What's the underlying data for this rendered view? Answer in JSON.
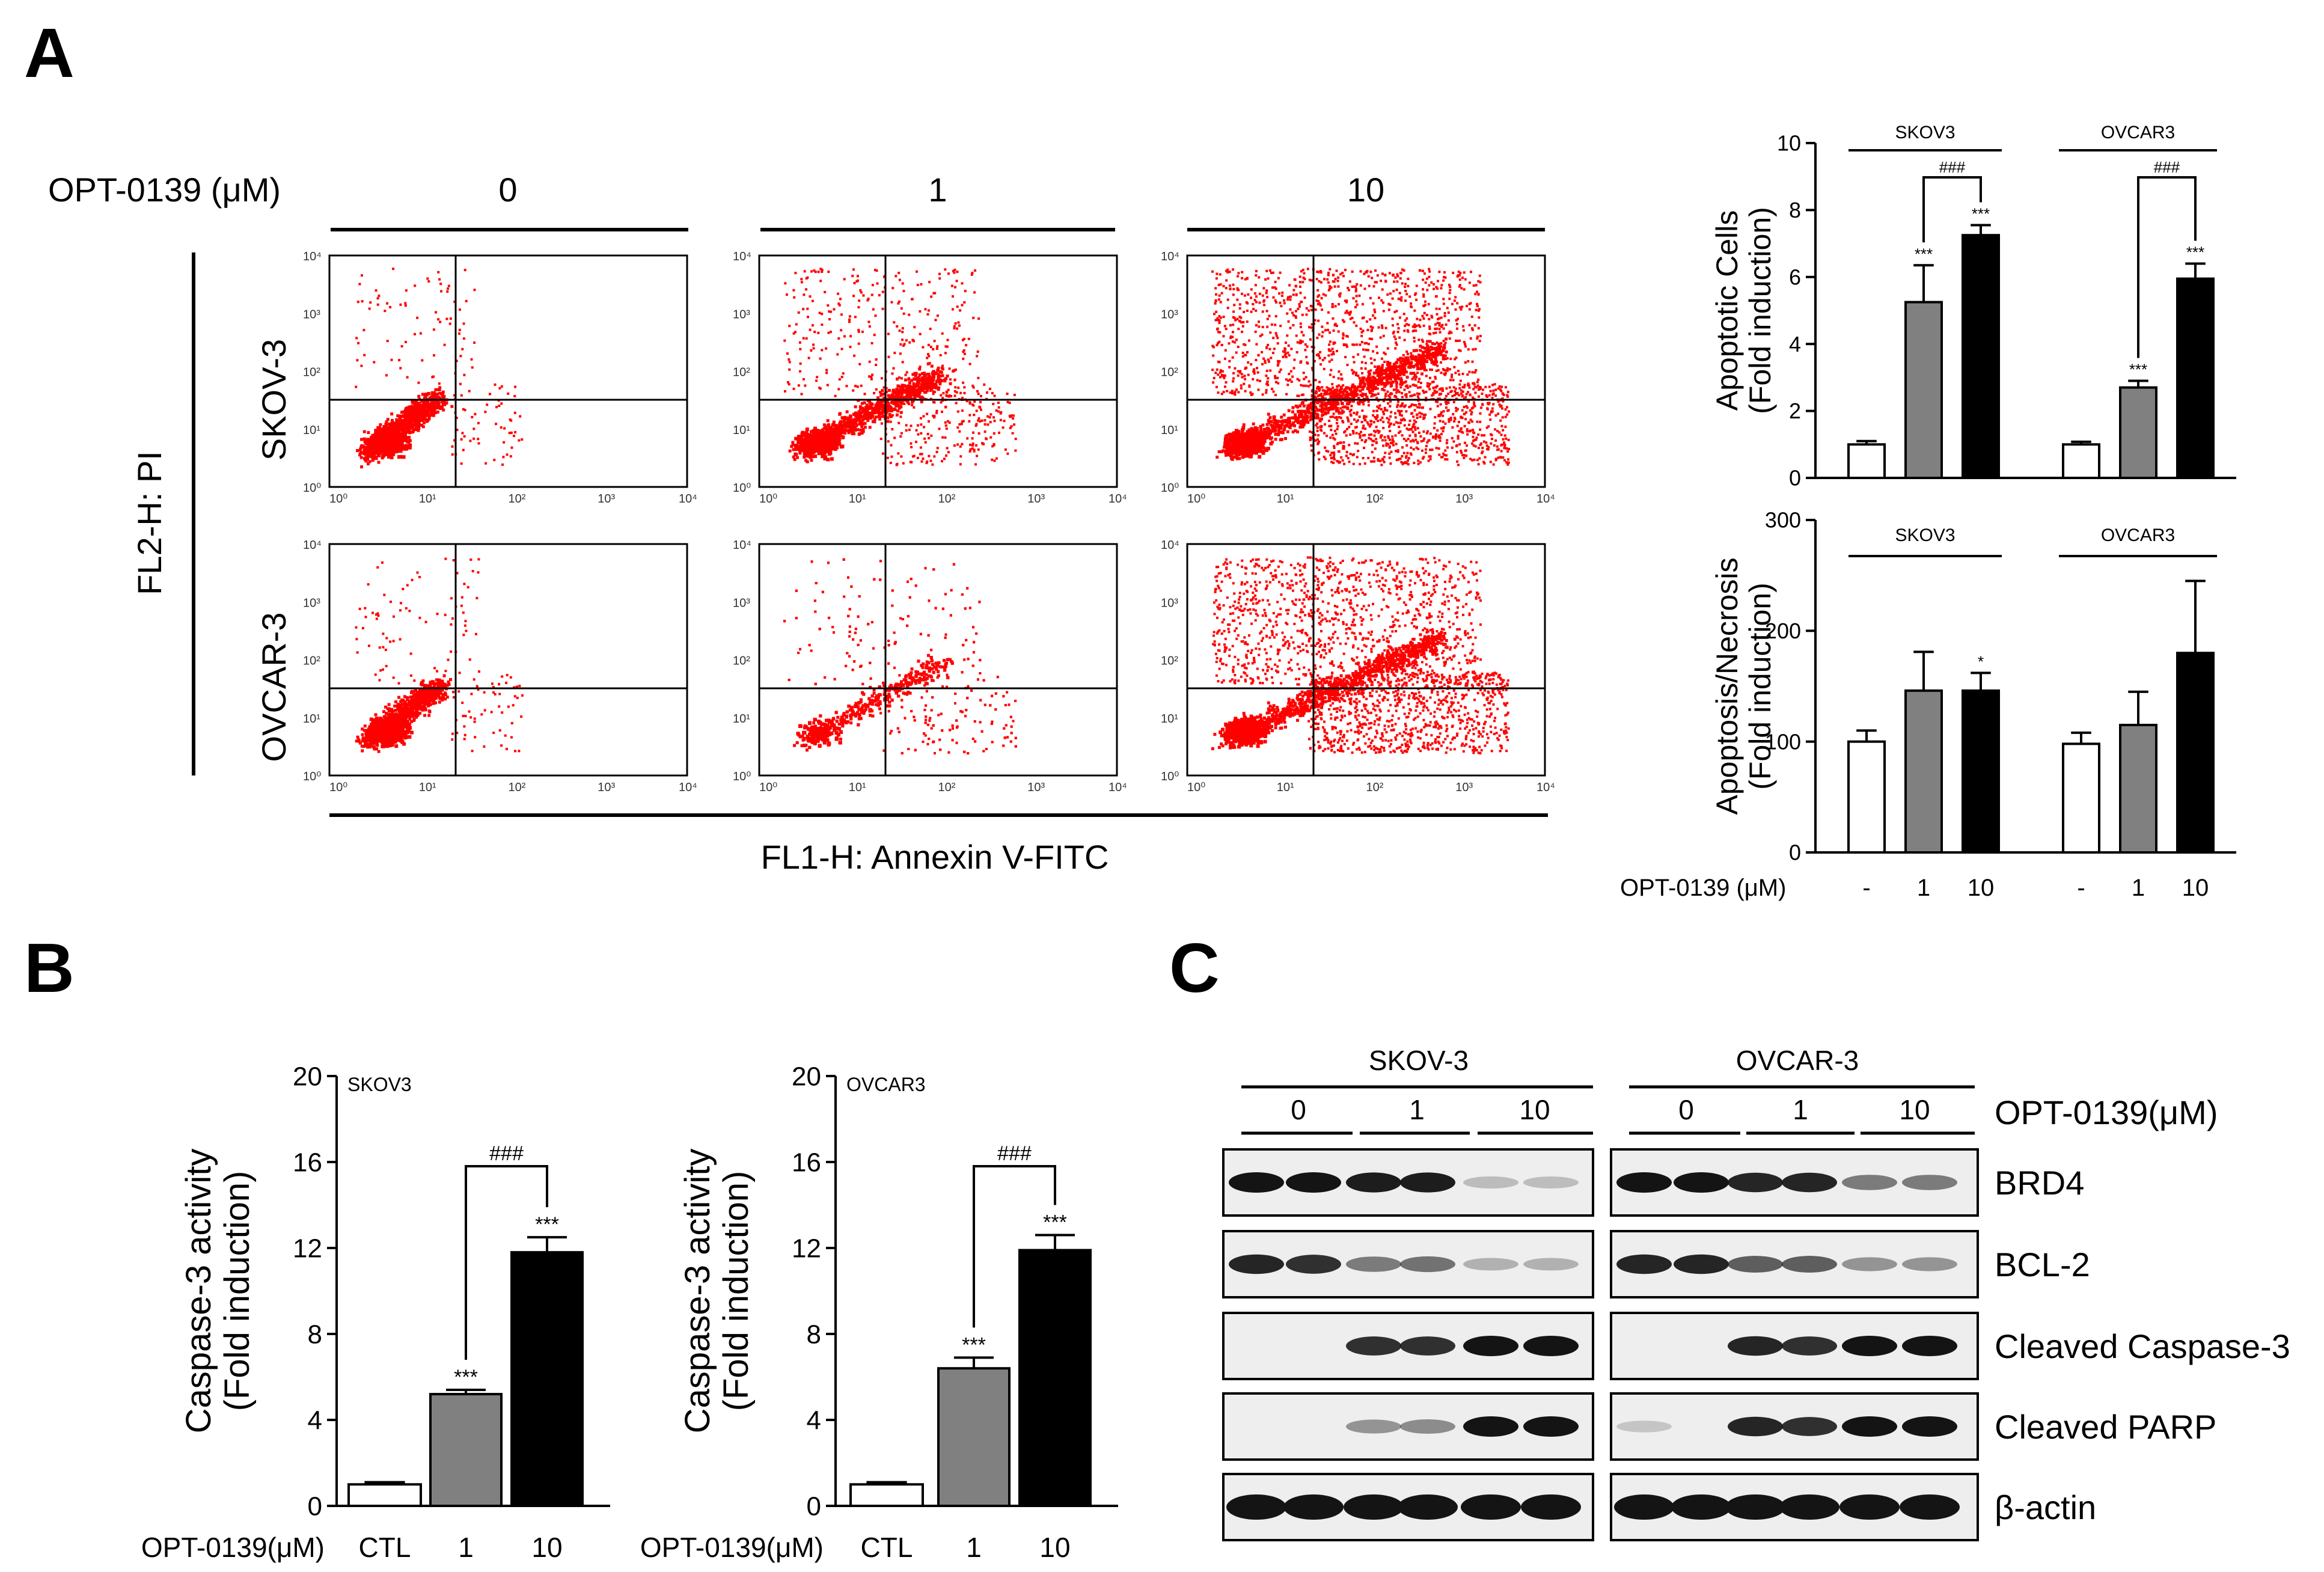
{
  "panels": {
    "a": "A",
    "b": "B",
    "c": "C"
  },
  "flow": {
    "treatment_label": "OPT-0139 (μM)",
    "doses": [
      "0",
      "1",
      "10"
    ],
    "cell_lines": [
      "SKOV-3",
      "OVCAR-3"
    ],
    "y_axis_label": "FL2-H: PI",
    "x_axis_label": "FL1-H: Annexin V-FITC",
    "tick_labels": [
      "10⁰",
      "10¹",
      "10²",
      "10³",
      "10⁴"
    ],
    "dot_color": "#ff0000"
  },
  "treatment_row": {
    "label": "OPT-0139 (μM)",
    "values": [
      "-",
      "1",
      "10",
      "-",
      "1",
      "10"
    ]
  },
  "westernblot": {
    "groups": [
      "SKOV-3",
      "OVCAR-3"
    ],
    "doses": [
      "0",
      "1",
      "10"
    ],
    "treatment_label": "OPT-0139(μM)",
    "proteins": [
      "BRD4",
      "BCL-2",
      "Cleaved Caspase-3",
      "Cleaved PARP",
      "β-actin"
    ],
    "band_intensity": [
      [
        1.0,
        1.0,
        0.95,
        0.95,
        0.1,
        0.08,
        1.0,
        1.0,
        0.9,
        0.9,
        0.45,
        0.45
      ],
      [
        0.9,
        0.85,
        0.45,
        0.5,
        0.15,
        0.15,
        0.9,
        0.9,
        0.6,
        0.6,
        0.3,
        0.3
      ],
      [
        0.0,
        0.0,
        0.85,
        0.85,
        1.0,
        1.0,
        0.0,
        0.0,
        0.9,
        0.85,
        1.0,
        1.0
      ],
      [
        0.0,
        0.0,
        0.3,
        0.35,
        1.0,
        1.0,
        0.05,
        0.0,
        0.9,
        0.85,
        1.0,
        1.0
      ],
      [
        1.0,
        1.0,
        1.0,
        1.0,
        1.0,
        1.0,
        1.0,
        1.0,
        1.0,
        1.0,
        1.0,
        1.0
      ]
    ]
  },
  "chart_data": [
    {
      "id": "apoptotic",
      "type": "bar",
      "ylabel_lines": [
        "Apoptotic Cells",
        "(Fold induction)"
      ],
      "ylim": [
        0,
        10
      ],
      "yticks": [
        0,
        2,
        4,
        6,
        8,
        10
      ],
      "groups": [
        "SKOV3",
        "OVCAR3"
      ],
      "categories": [
        "-",
        "1",
        "10"
      ],
      "series": [
        {
          "name": "SKOV3",
          "values": [
            1.0,
            5.25,
            7.25
          ],
          "errors": [
            0.1,
            1.1,
            0.3
          ],
          "sig": [
            "",
            "***",
            "***"
          ]
        },
        {
          "name": "OVCAR3",
          "values": [
            1.0,
            2.7,
            5.95
          ],
          "errors": [
            0.08,
            0.2,
            0.45
          ],
          "sig": [
            "",
            "***",
            "***"
          ]
        }
      ],
      "brackets": [
        "###",
        "###"
      ]
    },
    {
      "id": "apoptosis_necrosis",
      "type": "bar",
      "ylabel_lines": [
        "Apoptosis/Necrosis",
        "(Fold induction)"
      ],
      "ylim": [
        0,
        300
      ],
      "yticks": [
        0,
        100,
        200,
        300
      ],
      "groups": [
        "SKOV3",
        "OVCAR3"
      ],
      "categories": [
        "-",
        "1",
        "10"
      ],
      "series": [
        {
          "name": "SKOV3",
          "values": [
            100,
            146,
            146
          ],
          "errors": [
            10,
            35,
            16
          ],
          "sig": [
            "",
            "",
            "*"
          ]
        },
        {
          "name": "OVCAR3",
          "values": [
            98,
            115,
            180
          ],
          "errors": [
            10,
            30,
            65
          ],
          "sig": [
            "",
            "",
            ""
          ]
        }
      ]
    },
    {
      "id": "caspase_skov3",
      "type": "bar",
      "title": "SKOV3",
      "ylabel_lines": [
        "Caspase-3 activity",
        "(Fold induction)"
      ],
      "ylim": [
        0,
        20
      ],
      "yticks": [
        0,
        4,
        8,
        12,
        16,
        20
      ],
      "treatment_label": "OPT-0139(μM)",
      "categories": [
        "CTL",
        "1",
        "10"
      ],
      "values": [
        1.0,
        5.2,
        11.8
      ],
      "errors": [
        0.1,
        0.2,
        0.7
      ],
      "sig": [
        "",
        "***",
        "***"
      ],
      "bracket": "###"
    },
    {
      "id": "caspase_ovcar3",
      "type": "bar",
      "title": "OVCAR3",
      "ylabel_lines": [
        "Caspase-3 activity",
        "(Fold induction)"
      ],
      "ylim": [
        0,
        20
      ],
      "yticks": [
        0,
        4,
        8,
        12,
        16,
        20
      ],
      "treatment_label": "OPT-0139(μM)",
      "categories": [
        "CTL",
        "1",
        "10"
      ],
      "values": [
        1.0,
        6.4,
        11.9
      ],
      "errors": [
        0.1,
        0.5,
        0.7
      ],
      "sig": [
        "",
        "***",
        "***"
      ],
      "bracket": "###"
    }
  ],
  "colors": {
    "white_bar": "#ffffff",
    "grey_bar": "#808080",
    "black_bar": "#000000",
    "blot_bg": "#eeeeee",
    "band": "#141414"
  }
}
